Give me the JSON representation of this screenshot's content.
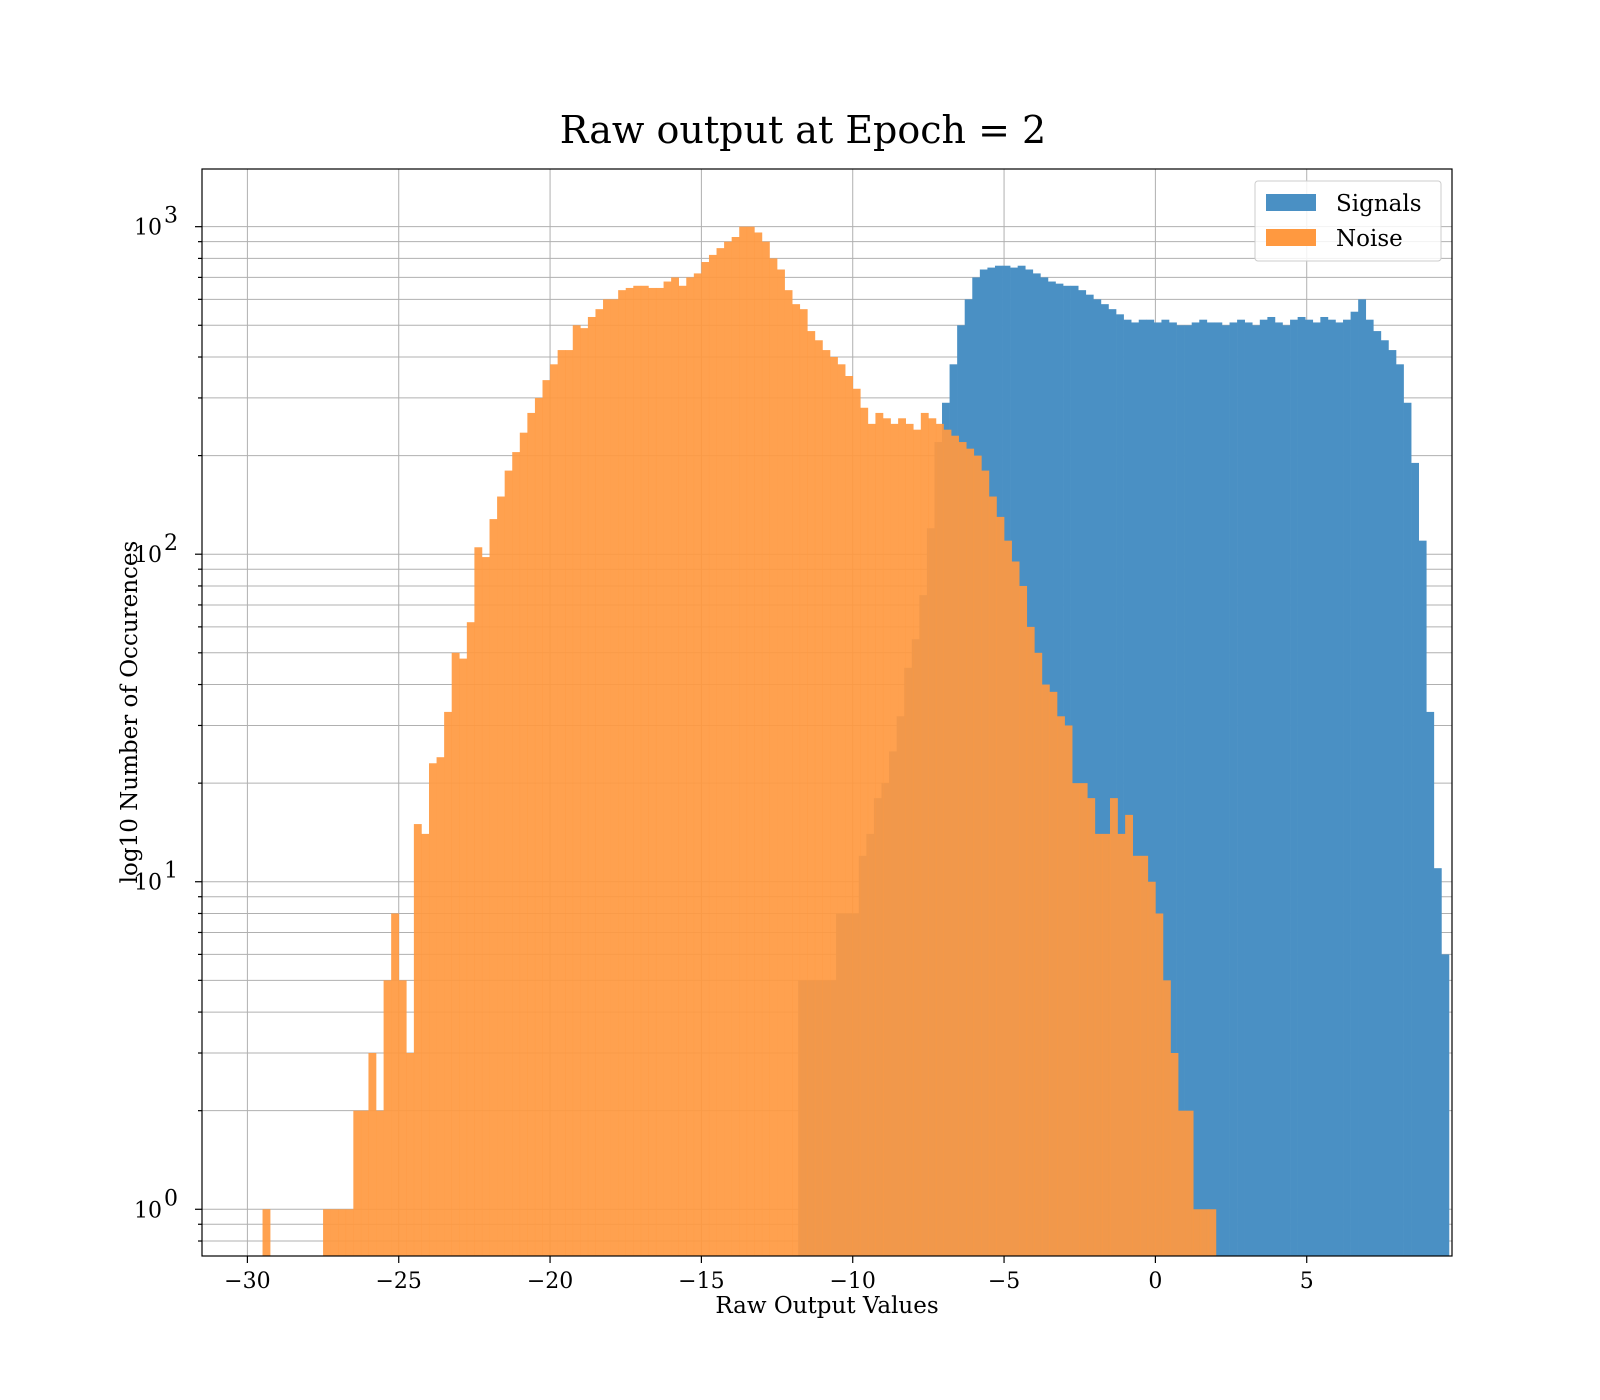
{
  "chart_data": {
    "type": "bar",
    "title": "Raw output at Epoch = 2",
    "xlabel": "Raw Output Values",
    "ylabel": "log10 Number of Occurences",
    "yscale": "log",
    "xlim": [
      -31.5,
      9.8
    ],
    "ylim": [
      0.72,
      1500
    ],
    "xticks": [
      -30,
      -25,
      -20,
      -15,
      -10,
      -5,
      0,
      5
    ],
    "xtick_labels": [
      "−30",
      "−25",
      "−20",
      "−15",
      "−10",
      "−5",
      "0",
      "5"
    ],
    "yticks": [
      1,
      10,
      100,
      1000
    ],
    "ytick_labels": [
      "10^0",
      "10^1",
      "10^2",
      "10^3"
    ],
    "grid": true,
    "legend_position": "top-right",
    "series": [
      {
        "name": "Signals",
        "color": "#4a90c4",
        "bin_start": -11.8,
        "bin_width": 0.25,
        "values": [
          5,
          5,
          5,
          5,
          5,
          8,
          8,
          8,
          12,
          14,
          18,
          20,
          25,
          32,
          45,
          55,
          75,
          120,
          220,
          290,
          380,
          500,
          600,
          700,
          740,
          750,
          760,
          760,
          750,
          760,
          740,
          720,
          700,
          680,
          670,
          660,
          660,
          640,
          620,
          600,
          580,
          560,
          540,
          520,
          510,
          520,
          520,
          510,
          520,
          510,
          500,
          500,
          510,
          520,
          510,
          510,
          500,
          510,
          520,
          510,
          500,
          520,
          530,
          510,
          500,
          520,
          530,
          520,
          510,
          530,
          520,
          510,
          520,
          550,
          600,
          520,
          480,
          450,
          420,
          380,
          290,
          190,
          110,
          33,
          11,
          6
        ]
      },
      {
        "name": "Noise",
        "color": "#ff9940",
        "bin_start": -29.5,
        "bin_width": 0.25,
        "values": [
          1,
          0,
          0,
          0,
          0,
          0,
          0,
          0,
          1,
          1,
          1,
          1,
          2,
          2,
          3,
          2,
          5,
          8,
          5,
          3,
          15,
          14,
          23,
          24,
          33,
          50,
          48,
          62,
          105,
          98,
          128,
          150,
          180,
          205,
          235,
          270,
          300,
          340,
          380,
          420,
          420,
          500,
          490,
          530,
          560,
          600,
          600,
          640,
          650,
          660,
          660,
          650,
          650,
          680,
          700,
          660,
          700,
          720,
          780,
          820,
          860,
          900,
          930,
          1000,
          1000,
          960,
          900,
          800,
          740,
          640,
          580,
          560,
          480,
          450,
          420,
          400,
          380,
          350,
          320,
          280,
          250,
          270,
          260,
          250,
          260,
          250,
          240,
          270,
          260,
          250,
          240,
          230,
          220,
          210,
          200,
          180,
          150,
          130,
          110,
          95,
          80,
          60,
          50,
          40,
          38,
          32,
          30,
          20,
          20,
          18,
          14,
          14,
          18,
          14,
          16,
          12,
          12,
          10,
          8,
          5,
          3,
          2,
          2,
          1,
          1,
          1
        ]
      }
    ]
  }
}
